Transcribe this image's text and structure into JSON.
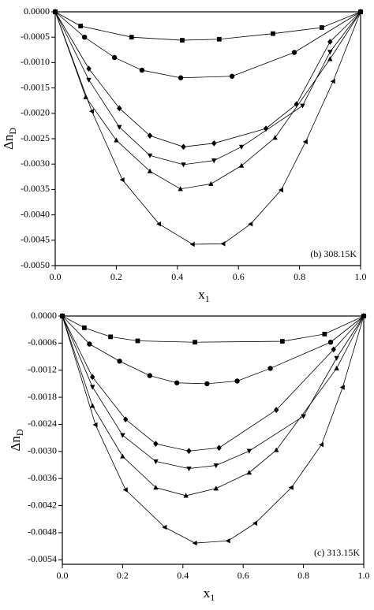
{
  "chart_data": [
    {
      "type": "line",
      "annotation": "(b)  308.15K",
      "xlabel": "x",
      "xlabel_sub": "1",
      "ylabel": "Δn",
      "ylabel_sub": "D",
      "xlim": [
        0,
        1
      ],
      "ylim": [
        -0.005,
        0
      ],
      "xticks": [
        {
          "value": 0,
          "label": "0.0"
        },
        {
          "value": 0.2,
          "label": "0.2"
        },
        {
          "value": 0.4,
          "label": "0.4"
        },
        {
          "value": 0.6,
          "label": "0.6"
        },
        {
          "value": 0.8,
          "label": "0.8"
        },
        {
          "value": 1,
          "label": "1.0"
        }
      ],
      "yticks": [
        {
          "value": 0,
          "label": "0.0000"
        },
        {
          "value": -0.0005,
          "label": "-0.0005"
        },
        {
          "value": -0.001,
          "label": "-0.0010"
        },
        {
          "value": -0.0015,
          "label": "-0.0015"
        },
        {
          "value": -0.002,
          "label": "-0.0020"
        },
        {
          "value": -0.0025,
          "label": "-0.0025"
        },
        {
          "value": -0.003,
          "label": "-0.0030"
        },
        {
          "value": -0.0035,
          "label": "-0.0035"
        },
        {
          "value": -0.004,
          "label": "-0.0040"
        },
        {
          "value": -0.0045,
          "label": "-0.0045"
        },
        {
          "value": -0.005,
          "label": "-0.0050"
        }
      ],
      "series": [
        {
          "marker": "square",
          "color": "#000000",
          "x": [
            0,
            0.083,
            0.25,
            0.416,
            0.537,
            0.713,
            0.873,
            1
          ],
          "values": [
            0,
            -0.00028,
            -0.0005,
            -0.00056,
            -0.00054,
            -0.00043,
            -0.00031,
            0
          ]
        },
        {
          "marker": "circle",
          "color": "#000000",
          "x": [
            0,
            0.096,
            0.194,
            0.284,
            0.411,
            0.579,
            0.783,
            1
          ],
          "values": [
            0,
            -0.0005,
            -0.0009,
            -0.00115,
            -0.0013,
            -0.00127,
            -0.0008,
            0
          ]
        },
        {
          "marker": "diamond",
          "color": "#000000",
          "x": [
            0,
            0.11,
            0.21,
            0.31,
            0.42,
            0.52,
            0.69,
            0.79,
            0.9,
            1
          ],
          "values": [
            0,
            -0.00112,
            -0.0019,
            -0.00244,
            -0.00266,
            -0.00259,
            -0.0023,
            -0.00182,
            -0.00059,
            0
          ]
        },
        {
          "marker": "down",
          "color": "#000000",
          "x": [
            0,
            0.11,
            0.21,
            0.31,
            0.42,
            0.52,
            0.61,
            0.81,
            0.9,
            1
          ],
          "values": [
            0,
            -0.00134,
            -0.00227,
            -0.00283,
            -0.00301,
            -0.00293,
            -0.00266,
            -0.00185,
            -0.00079,
            0
          ]
        },
        {
          "marker": "up",
          "color": "#000000",
          "x": [
            0,
            0.1,
            0.2,
            0.31,
            0.41,
            0.51,
            0.61,
            0.72,
            0.9,
            1
          ],
          "values": [
            0,
            -0.00168,
            -0.00253,
            -0.00314,
            -0.00349,
            -0.00339,
            -0.00303,
            -0.00248,
            -0.00093,
            0
          ]
        },
        {
          "marker": "left",
          "color": "#000000",
          "x": [
            0,
            0.12,
            0.22,
            0.34,
            0.45,
            0.55,
            0.64,
            0.74,
            0.82,
            0.91,
            1
          ],
          "values": [
            0,
            -0.00196,
            -0.00331,
            -0.00418,
            -0.00458,
            -0.00457,
            -0.00418,
            -0.00351,
            -0.00256,
            -0.00137,
            0
          ]
        }
      ]
    },
    {
      "type": "line",
      "annotation": "(c) 313.15K",
      "xlabel": "x",
      "xlabel_sub": "1",
      "ylabel": "Δn",
      "ylabel_sub": "D",
      "xlim": [
        0,
        1
      ],
      "ylim": [
        -0.0055,
        0
      ],
      "xticks": [
        {
          "value": 0,
          "label": "0.0"
        },
        {
          "value": 0.2,
          "label": "0.2"
        },
        {
          "value": 0.4,
          "label": "0.4"
        },
        {
          "value": 0.6,
          "label": "0.6"
        },
        {
          "value": 0.8,
          "label": "0.8"
        },
        {
          "value": 1,
          "label": "1.0"
        }
      ],
      "yticks": [
        {
          "value": 0,
          "label": "0.0000"
        },
        {
          "value": -0.0006,
          "label": "-0.0006"
        },
        {
          "value": -0.0012,
          "label": "-0.0012"
        },
        {
          "value": -0.0018,
          "label": "-0.0018"
        },
        {
          "value": -0.0024,
          "label": "-0.0024"
        },
        {
          "value": -0.003,
          "label": "-0.0030"
        },
        {
          "value": -0.0036,
          "label": "-0.0036"
        },
        {
          "value": -0.0042,
          "label": "-0.0042"
        },
        {
          "value": -0.0048,
          "label": "-0.0048"
        },
        {
          "value": -0.0054,
          "label": "-0.0054"
        }
      ],
      "series": [
        {
          "marker": "square",
          "color": "#000000",
          "x": [
            0,
            0.073,
            0.16,
            0.25,
            0.44,
            0.73,
            0.87,
            1
          ],
          "values": [
            0,
            -0.00026,
            -0.00046,
            -0.00055,
            -0.00058,
            -0.00056,
            -0.0004,
            0
          ]
        },
        {
          "marker": "circle",
          "color": "#000000",
          "x": [
            0,
            0.09,
            0.19,
            0.29,
            0.38,
            0.48,
            0.58,
            0.69,
            0.89,
            1
          ],
          "values": [
            0,
            -0.00062,
            -0.001,
            -0.00132,
            -0.00148,
            -0.0015,
            -0.00144,
            -0.00116,
            -0.00058,
            0
          ]
        },
        {
          "marker": "diamond",
          "color": "#000000",
          "x": [
            0,
            0.1,
            0.21,
            0.31,
            0.42,
            0.52,
            0.71,
            0.9,
            1
          ],
          "values": [
            0,
            -0.00135,
            -0.00229,
            -0.00283,
            -0.00299,
            -0.00292,
            -0.00208,
            -0.00074,
            0
          ]
        },
        {
          "marker": "down",
          "color": "#000000",
          "x": [
            0,
            0.1,
            0.2,
            0.31,
            0.42,
            0.51,
            0.62,
            0.8,
            0.91,
            1
          ],
          "values": [
            0,
            -0.00157,
            -0.00264,
            -0.00322,
            -0.00338,
            -0.00331,
            -0.00299,
            -0.00222,
            -0.00093,
            0
          ]
        },
        {
          "marker": "up",
          "color": "#000000",
          "x": [
            0,
            0.1,
            0.2,
            0.31,
            0.41,
            0.51,
            0.62,
            0.71,
            0.91,
            1
          ],
          "values": [
            0,
            -0.00199,
            -0.00311,
            -0.0038,
            -0.00398,
            -0.00382,
            -0.00347,
            -0.00297,
            -0.00116,
            0
          ]
        },
        {
          "marker": "left",
          "color": "#000000",
          "x": [
            0,
            0.11,
            0.21,
            0.34,
            0.44,
            0.55,
            0.64,
            0.76,
            0.86,
            0.93,
            1
          ],
          "values": [
            0,
            -0.00241,
            -0.00385,
            -0.00468,
            -0.00503,
            -0.00498,
            -0.00459,
            -0.0038,
            -0.00285,
            -0.00158,
            0
          ]
        }
      ]
    }
  ]
}
